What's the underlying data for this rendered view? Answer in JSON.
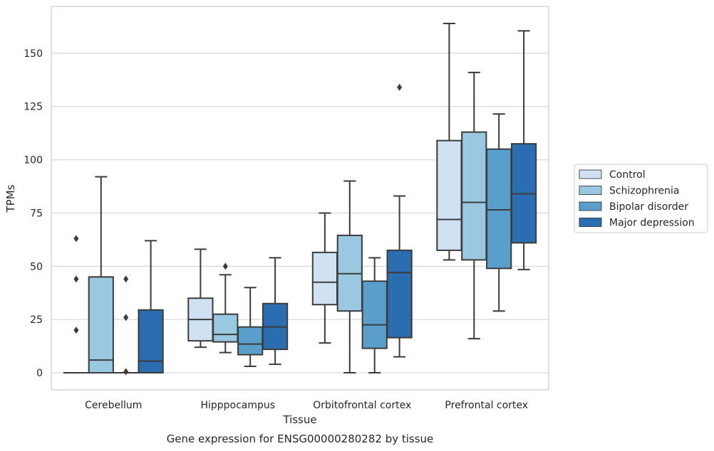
{
  "caption": "Gene expression for ENSG00000280282 by tissue",
  "chart_data": {
    "type": "box",
    "xlabel": "Tissue",
    "ylabel": "TPMs",
    "ylim": [
      -8,
      172
    ],
    "yticks": [
      0,
      25,
      50,
      75,
      100,
      125,
      150
    ],
    "grid": "horizontal",
    "legend_position": "right",
    "categories": [
      "Cerebellum",
      "Hipppocampus",
      "Orbitofrontal cortex",
      "Prefrontal cortex"
    ],
    "series": [
      {
        "name": "Control",
        "color": "#cfe1f2",
        "boxes": [
          {
            "min": 0,
            "q1": 0,
            "median": 0,
            "q3": 0,
            "max": 0,
            "outliers": [
              63,
              44,
              20
            ]
          },
          {
            "min": 12,
            "q1": 15,
            "median": 25,
            "q3": 35,
            "max": 58,
            "outliers": []
          },
          {
            "min": 14,
            "q1": 32,
            "median": 42.5,
            "q3": 56.5,
            "max": 75,
            "outliers": []
          },
          {
            "min": 53,
            "q1": 57.5,
            "median": 72,
            "q3": 109,
            "max": 164,
            "outliers": []
          }
        ]
      },
      {
        "name": "Schizophrenia",
        "color": "#9ac8e0",
        "boxes": [
          {
            "min": 0,
            "q1": 0,
            "median": 6,
            "q3": 45,
            "max": 92,
            "outliers": []
          },
          {
            "min": 9.5,
            "q1": 14.5,
            "median": 18,
            "q3": 27.5,
            "max": 46,
            "outliers": [
              50
            ]
          },
          {
            "min": 0,
            "q1": 29,
            "median": 46.5,
            "q3": 64.5,
            "max": 90,
            "outliers": []
          },
          {
            "min": 16,
            "q1": 53,
            "median": 80,
            "q3": 113,
            "max": 141,
            "outliers": []
          }
        ]
      },
      {
        "name": "Bipolar disorder",
        "color": "#5a9fcc",
        "boxes": [
          {
            "min": 0,
            "q1": 0,
            "median": 0,
            "q3": 0,
            "max": 0,
            "outliers": [
              44,
              26,
              0.5
            ]
          },
          {
            "min": 3,
            "q1": 8.5,
            "median": 13.5,
            "q3": 21.5,
            "max": 40,
            "outliers": []
          },
          {
            "min": 0,
            "q1": 11.5,
            "median": 22.5,
            "q3": 43,
            "max": 54,
            "outliers": []
          },
          {
            "min": 29,
            "q1": 49,
            "median": 76.5,
            "q3": 105,
            "max": 121.5,
            "outliers": []
          }
        ]
      },
      {
        "name": "Major depression",
        "color": "#2a6db0",
        "boxes": [
          {
            "min": 0,
            "q1": 0,
            "median": 5.5,
            "q3": 29.5,
            "max": 62,
            "outliers": []
          },
          {
            "min": 4,
            "q1": 11,
            "median": 21.5,
            "q3": 32.5,
            "max": 54,
            "outliers": []
          },
          {
            "min": 7.5,
            "q1": 16.5,
            "median": 47,
            "q3": 57.5,
            "max": 83,
            "outliers": [
              134
            ]
          },
          {
            "min": 48.5,
            "q1": 61,
            "median": 84,
            "q3": 107.5,
            "max": 160.5,
            "outliers": []
          }
        ]
      }
    ]
  }
}
